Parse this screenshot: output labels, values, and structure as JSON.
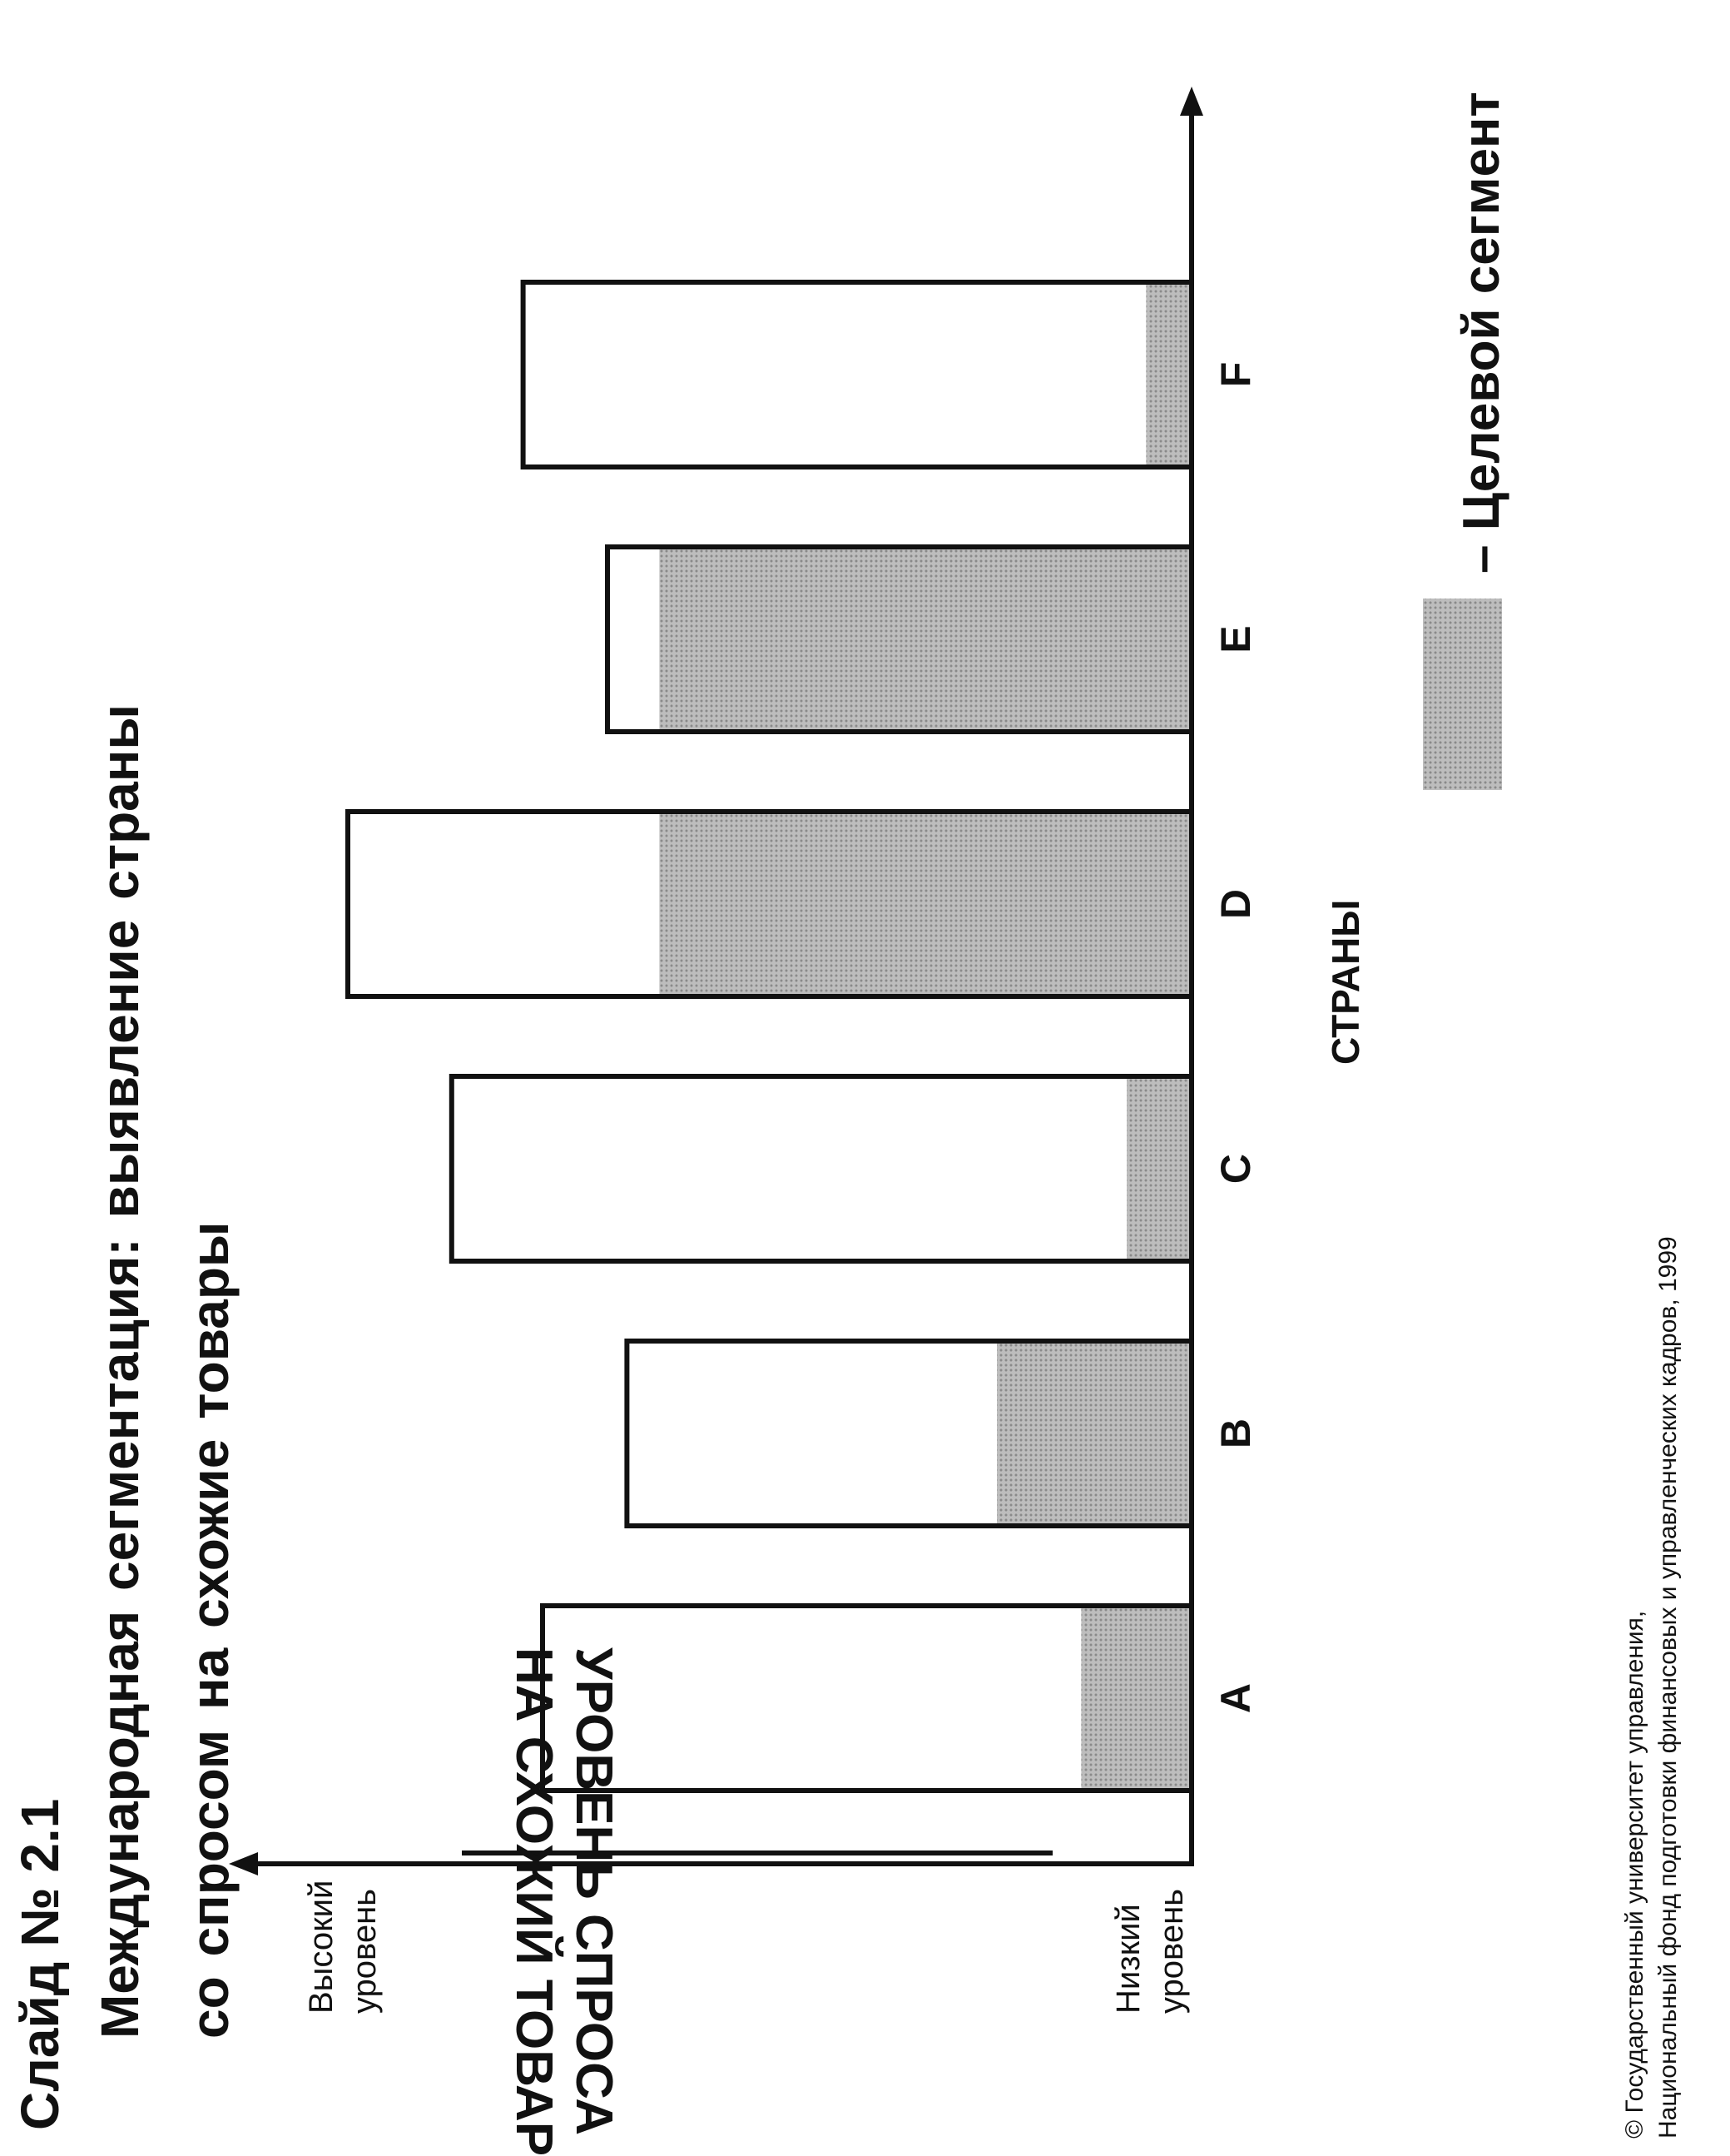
{
  "header": {
    "slide_title": "Слайд № 2.1",
    "subtitle_lines": [
      "Международная сегментация: выявление страны",
      "со спросом на схожие товары"
    ]
  },
  "axes": {
    "ylabel_lines": [
      "УРОВЕНЬ СПРОСА",
      "НА СХОЖИЙ ТОВАР"
    ],
    "y_high_lines": [
      "Высокий",
      "уровень"
    ],
    "y_low_lines": [
      "Низкий",
      "уровень"
    ],
    "xlabel": "СТРАНЫ"
  },
  "legend": {
    "label": "– Целевой сегмент"
  },
  "footer": {
    "copyright_lines": [
      "© Государственный университет управления,",
      "Национальный фонд подготовки финансовых и управленческих кадров, 1999"
    ]
  },
  "colors": {
    "ink": "#111111",
    "segment_fill": "#bdbdbd",
    "segment_dots": "#8a8a8a",
    "bar_fill": "#ffffff"
  },
  "chart_data": {
    "type": "bar",
    "stacked": true,
    "categories": [
      "A",
      "B",
      "C",
      "D",
      "E",
      "F"
    ],
    "series": [
      {
        "name": "Целевой сегмент",
        "values": [
          17,
          30,
          10,
          82,
          82,
          7
        ]
      },
      {
        "values": [
          83,
          57,
          104,
          48,
          8,
          96
        ]
      }
    ],
    "totals": [
      100,
      87,
      114,
      130,
      90,
      103
    ],
    "ylim": [
      0,
      150
    ],
    "grid": false,
    "ytick_labels": "none"
  }
}
